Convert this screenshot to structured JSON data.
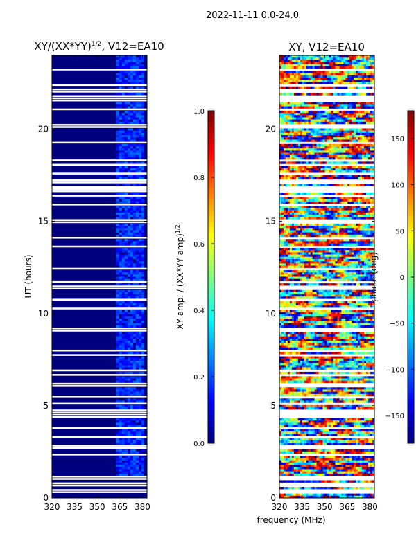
{
  "figure": {
    "suptitle": "2022-11-11 0.0-24.0",
    "xlabel": "frequency (MHz)"
  },
  "colors": {
    "jet_stops": [
      "#00007f",
      "#0000ff",
      "#007fff",
      "#00ffff",
      "#7fff7f",
      "#ffff00",
      "#ff7f00",
      "#ff0000",
      "#7f0000"
    ],
    "background": "#ffffff"
  },
  "chart_data": [
    {
      "type": "heatmap",
      "title_main": "XY/(XX*YY)",
      "title_sup": "1/2",
      "title_tail": ", V12=EA10",
      "xlabel": "",
      "ylabel": "UT (hours)",
      "xlim": [
        320,
        383
      ],
      "ylim": [
        0,
        24
      ],
      "xticks": [
        320,
        335,
        350,
        365,
        380
      ],
      "yticks": [
        0,
        5,
        10,
        15,
        20
      ],
      "colorbar": {
        "label_main": "XY amp. / (XX*YY amp)",
        "label_sup": "1/2",
        "range": [
          0.0,
          1.0
        ],
        "ticks": [
          "0.0",
          "0.2",
          "0.4",
          "0.6",
          "0.8",
          "1.0"
        ]
      }
    },
    {
      "type": "heatmap",
      "title": "XY, V12=EA10",
      "xlabel": "",
      "ylabel": "",
      "xlim": [
        320,
        383
      ],
      "ylim": [
        0,
        24
      ],
      "xticks": [
        320,
        335,
        350,
        365,
        380
      ],
      "yticks": [
        0,
        5,
        10,
        15,
        20
      ],
      "colorbar": {
        "label": "phase (deg)",
        "range": [
          -180,
          180
        ],
        "ticks": [
          "−150",
          "−100",
          "−50",
          "0",
          "50",
          "100",
          "150"
        ]
      }
    }
  ]
}
